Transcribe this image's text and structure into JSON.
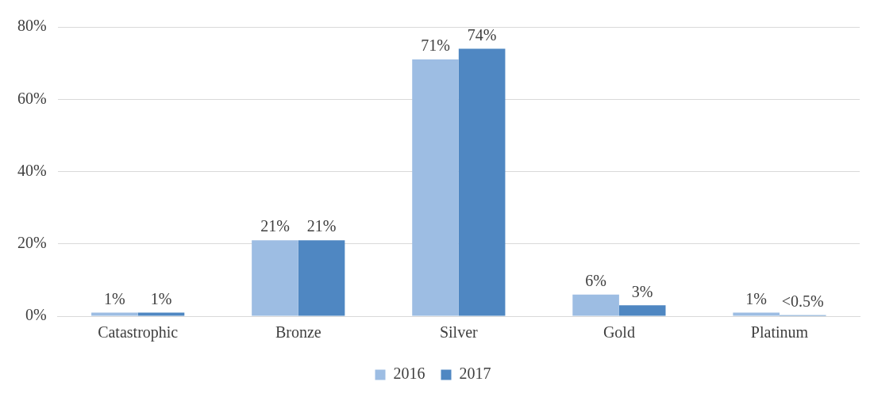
{
  "chart_data": {
    "type": "bar",
    "categories": [
      "Catastrophic",
      "Bronze",
      "Silver",
      "Gold",
      "Platinum"
    ],
    "series": [
      {
        "name": "2016",
        "color": "#9dbde3",
        "values": [
          1,
          21,
          71,
          6,
          1
        ],
        "value_labels": [
          "1%",
          "21%",
          "71%",
          "6%",
          "1%"
        ]
      },
      {
        "name": "2017",
        "color": "#4f87c2",
        "values": [
          1,
          21,
          74,
          3,
          0.3
        ],
        "value_labels": [
          "1%",
          "21%",
          "74%",
          "3%",
          "<0.5%"
        ]
      }
    ],
    "ylim": [
      0,
      80
    ],
    "yticks": [
      {
        "value": 0,
        "label": "0%"
      },
      {
        "value": 20,
        "label": "20%"
      },
      {
        "value": 40,
        "label": "40%"
      },
      {
        "value": 60,
        "label": "60%"
      },
      {
        "value": 80,
        "label": "80%"
      }
    ],
    "grid": "y",
    "legend": "bottom"
  }
}
